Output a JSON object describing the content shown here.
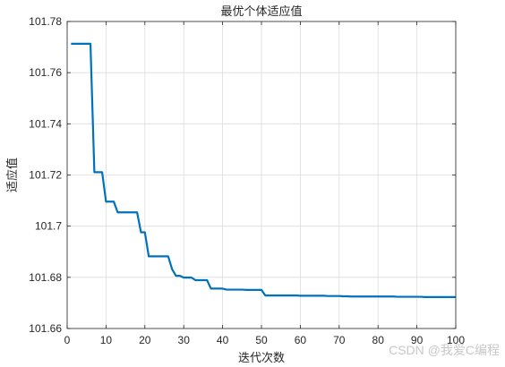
{
  "chart_data": {
    "type": "line",
    "title": "最优个体适应值",
    "xlabel": "迭代次数",
    "ylabel": "适应值",
    "xlim": [
      0,
      100
    ],
    "ylim": [
      101.66,
      101.78
    ],
    "grid": true,
    "line_color": "#0072BD",
    "xticks": [
      0,
      10,
      20,
      30,
      40,
      50,
      60,
      70,
      80,
      90,
      100
    ],
    "xtick_labels": [
      "0",
      "10",
      "20",
      "30",
      "40",
      "50",
      "60",
      "70",
      "80",
      "90",
      "100"
    ],
    "yticks": [
      101.66,
      101.68,
      101.7,
      101.72,
      101.74,
      101.76,
      101.78
    ],
    "ytick_labels": [
      "101.66",
      "101.68",
      "101.7",
      "101.72",
      "101.74",
      "101.76",
      "101.78"
    ],
    "series": [
      {
        "x": [
          1,
          2,
          3,
          4,
          5,
          6,
          7,
          8,
          9,
          10,
          11,
          12,
          13,
          14,
          15,
          16,
          17,
          18,
          19,
          20,
          21,
          22,
          23,
          24,
          25,
          26,
          27,
          28,
          29,
          30,
          31,
          32,
          33,
          34,
          35,
          36,
          37,
          38,
          39,
          40,
          41,
          42,
          43,
          44,
          45,
          46,
          47,
          48,
          49,
          50,
          51,
          52,
          53,
          54,
          55,
          56,
          57,
          58,
          59,
          60,
          61,
          62,
          63,
          64,
          65,
          66,
          67,
          68,
          69,
          70,
          71,
          72,
          73,
          74,
          75,
          76,
          77,
          78,
          79,
          80,
          81,
          82,
          83,
          84,
          85,
          86,
          87,
          88,
          89,
          90,
          91,
          92,
          93,
          94,
          95,
          96,
          97,
          98,
          99,
          100
        ],
        "y": [
          101.7713,
          101.7713,
          101.7713,
          101.7713,
          101.7713,
          101.7713,
          101.7211,
          101.7211,
          101.7211,
          101.7096,
          101.7096,
          101.7096,
          101.7054,
          101.7054,
          101.7054,
          101.7054,
          101.7054,
          101.7054,
          101.6976,
          101.6976,
          101.6882,
          101.6882,
          101.6882,
          101.6882,
          101.6882,
          101.6882,
          101.6832,
          101.6806,
          101.6806,
          101.6799,
          101.6799,
          101.6799,
          101.6789,
          101.6789,
          101.6789,
          101.6789,
          101.6756,
          101.6756,
          101.6756,
          101.6756,
          101.6752,
          101.6752,
          101.6752,
          101.6752,
          101.6752,
          101.6751,
          101.6751,
          101.6751,
          101.6751,
          101.6751,
          101.6729,
          101.6729,
          101.6729,
          101.6729,
          101.6729,
          101.6729,
          101.6729,
          101.6729,
          101.6729,
          101.6728,
          101.6728,
          101.6728,
          101.6728,
          101.6728,
          101.6728,
          101.6728,
          101.6727,
          101.6727,
          101.6727,
          101.6727,
          101.6726,
          101.6726,
          101.6725,
          101.6725,
          101.6725,
          101.6725,
          101.6725,
          101.6725,
          101.6725,
          101.6725,
          101.6725,
          101.6725,
          101.6725,
          101.6725,
          101.6724,
          101.6724,
          101.6724,
          101.6724,
          101.6724,
          101.6724,
          101.6724,
          101.6723,
          101.6723,
          101.6723,
          101.6723,
          101.6723,
          101.6723,
          101.6723,
          101.6723,
          101.6723
        ]
      }
    ]
  },
  "watermark": "CSDN @我爱C编程"
}
